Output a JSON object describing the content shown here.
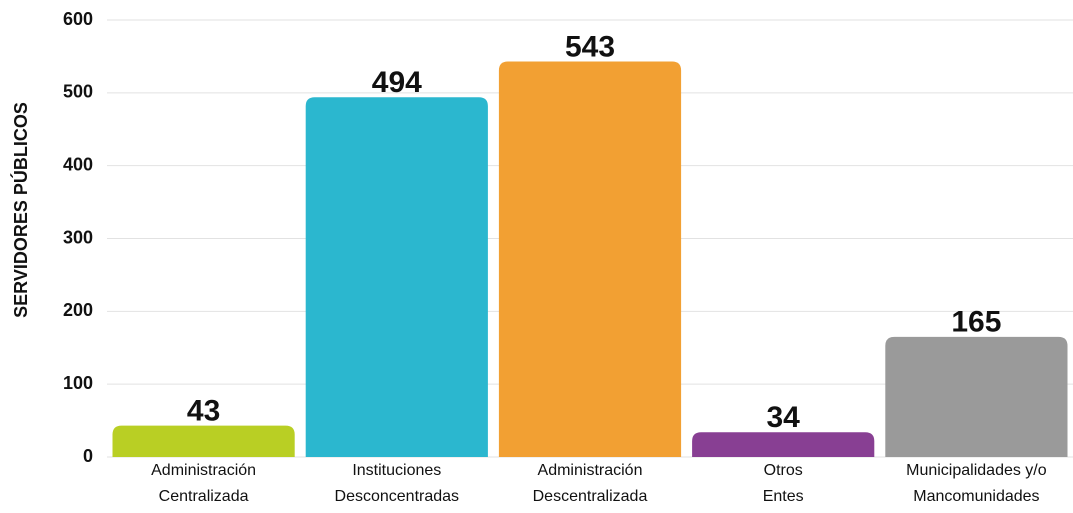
{
  "chart_data": {
    "type": "bar",
    "y_label": "SERVIDORES PÚBLICOS",
    "categories": [
      [
        "Administración",
        "Centralizada"
      ],
      [
        "Instituciones",
        "Desconcentradas"
      ],
      [
        "Administración",
        "Descentralizada"
      ],
      [
        "Otros",
        "Entes"
      ],
      [
        "Municipalidades y/o",
        "Mancomunidades"
      ]
    ],
    "values": [
      43,
      494,
      543,
      34,
      165
    ],
    "colors": [
      "#b9cf24",
      "#2bb7cf",
      "#f2a033",
      "#883f93",
      "#9a9a9a"
    ],
    "ylim": [
      0,
      600
    ],
    "yticks": [
      0,
      100,
      200,
      300,
      400,
      500,
      600
    ],
    "grid": true
  }
}
